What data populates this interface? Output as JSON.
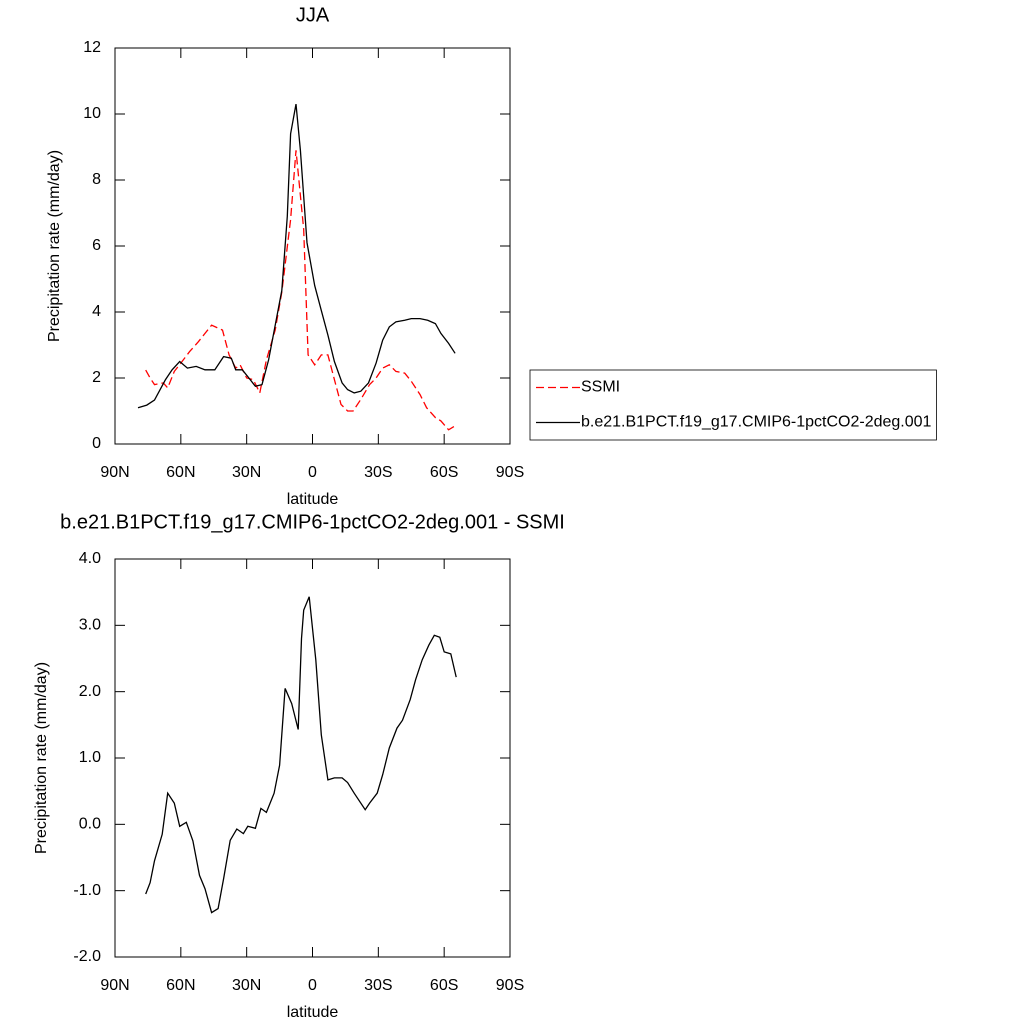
{
  "chart_data": [
    {
      "type": "line",
      "title": "JJA",
      "xlabel": "latitude",
      "ylabel": "Precipitation rate (mm/day)",
      "xlim": [
        90,
        -90
      ],
      "xticks": [
        {
          "value": 90,
          "label": "90N"
        },
        {
          "value": 60,
          "label": "60N"
        },
        {
          "value": 30,
          "label": "30N"
        },
        {
          "value": 0,
          "label": "0"
        },
        {
          "value": -30,
          "label": "30S"
        },
        {
          "value": -60,
          "label": "60S"
        },
        {
          "value": -90,
          "label": "90S"
        }
      ],
      "ylim": [
        0,
        12
      ],
      "yticks": [
        0,
        2,
        4,
        6,
        8,
        10,
        12
      ],
      "legend": "right",
      "series": [
        {
          "name": "SSMI",
          "color": "#ff0000",
          "dash": true,
          "x": [
            76,
            74,
            72,
            68,
            66,
            63,
            60,
            56,
            52,
            49,
            46,
            41,
            38,
            35,
            33,
            30,
            27,
            24,
            21,
            17,
            14,
            10,
            7.5,
            4,
            2,
            -1,
            -4,
            -7,
            -10,
            -13,
            -16,
            -18.5,
            -22,
            -26,
            -29,
            -32,
            -35,
            -38,
            -42,
            -45,
            -49,
            -52,
            -56,
            -58.5,
            -62,
            -65
          ],
          "values": [
            2.24,
            2.0,
            1.8,
            1.85,
            1.7,
            2.2,
            2.45,
            2.8,
            3.1,
            3.35,
            3.6,
            3.45,
            2.7,
            2.3,
            2.4,
            2.0,
            1.95,
            1.55,
            2.55,
            3.45,
            4.6,
            6.8,
            8.9,
            6.5,
            2.7,
            2.4,
            2.7,
            2.7,
            1.95,
            1.2,
            1.0,
            1.0,
            1.35,
            1.8,
            2.0,
            2.3,
            2.4,
            2.2,
            2.15,
            1.9,
            1.5,
            1.1,
            0.8,
            0.7,
            0.43,
            0.55
          ]
        },
        {
          "name": "b.e21.B1PCT.f19_g17.CMIP6-1pctCO2-2deg.001",
          "color": "#000000",
          "dash": false,
          "x": [
            79.5,
            75.5,
            72,
            67,
            64,
            60.5,
            57,
            53,
            49,
            44.5,
            40.5,
            37,
            35,
            32,
            29,
            26,
            23,
            20,
            17,
            14,
            11.5,
            10,
            7.5,
            5.5,
            2.5,
            -1,
            -4,
            -7,
            -10,
            -13.5,
            -16,
            -19,
            -22,
            -25.5,
            -29,
            -32,
            -35,
            -38,
            -42,
            -45,
            -49,
            -52.5,
            -56,
            -58.5,
            -62,
            -65
          ],
          "values": [
            1.1,
            1.18,
            1.33,
            1.95,
            2.25,
            2.5,
            2.3,
            2.35,
            2.25,
            2.25,
            2.65,
            2.6,
            2.25,
            2.25,
            2.0,
            1.75,
            1.8,
            2.55,
            3.6,
            4.65,
            6.9,
            9.4,
            10.3,
            8.9,
            6.1,
            4.8,
            4.05,
            3.3,
            2.5,
            1.85,
            1.65,
            1.55,
            1.6,
            1.85,
            2.45,
            3.15,
            3.55,
            3.7,
            3.75,
            3.8,
            3.8,
            3.75,
            3.65,
            3.35,
            3.05,
            2.75
          ]
        }
      ]
    },
    {
      "type": "line",
      "title": "b.e21.B1PCT.f19_g17.CMIP6-1pctCO2-2deg.001 - SSMI",
      "xlabel": "latitude",
      "ylabel": "Precipitation rate (mm/day)",
      "xlim": [
        90,
        -90
      ],
      "xticks": [
        {
          "value": 90,
          "label": "90N"
        },
        {
          "value": 60,
          "label": "60N"
        },
        {
          "value": 30,
          "label": "30N"
        },
        {
          "value": 0,
          "label": "0"
        },
        {
          "value": -30,
          "label": "30S"
        },
        {
          "value": -60,
          "label": "60S"
        },
        {
          "value": -90,
          "label": "90S"
        }
      ],
      "ylim": [
        -2,
        4
      ],
      "yticks": [
        {
          "value": -2,
          "label": "-2.0"
        },
        {
          "value": -1,
          "label": "-1.0"
        },
        {
          "value": 0,
          "label": "0.0"
        },
        {
          "value": 1,
          "label": "1.0"
        },
        {
          "value": 2,
          "label": "2.0"
        },
        {
          "value": 3,
          "label": "3.0"
        },
        {
          "value": 4,
          "label": "4.0"
        }
      ],
      "series": [
        {
          "color": "#000000",
          "dash": false,
          "x": [
            76,
            74,
            72,
            68.5,
            66,
            63,
            60.5,
            57.5,
            54.5,
            51.5,
            49,
            46,
            43,
            40.5,
            37.5,
            34.5,
            31.5,
            29.5,
            26,
            23.5,
            21,
            17.5,
            15,
            12.5,
            9.5,
            6.5,
            5,
            4,
            1.5,
            -1.5,
            -4,
            -7,
            -10,
            -13.5,
            -16,
            -19,
            -24,
            -26,
            -29.5,
            -32,
            -35,
            -38.5,
            -41,
            -44.5,
            -47,
            -50,
            -53,
            -55.5,
            -58,
            -60,
            -63,
            -65.5
          ],
          "values": [
            -1.05,
            -0.88,
            -0.55,
            -0.15,
            0.47,
            0.32,
            -0.03,
            0.03,
            -0.25,
            -0.77,
            -0.97,
            -1.33,
            -1.27,
            -0.82,
            -0.24,
            -0.07,
            -0.14,
            -0.03,
            -0.06,
            0.24,
            0.18,
            0.47,
            0.89,
            2.05,
            1.82,
            1.43,
            2.8,
            3.23,
            3.43,
            2.48,
            1.35,
            0.67,
            0.7,
            0.7,
            0.63,
            0.47,
            0.22,
            0.32,
            0.47,
            0.75,
            1.15,
            1.45,
            1.57,
            1.88,
            2.18,
            2.48,
            2.7,
            2.85,
            2.82,
            2.6,
            2.57,
            2.22
          ]
        }
      ]
    }
  ]
}
